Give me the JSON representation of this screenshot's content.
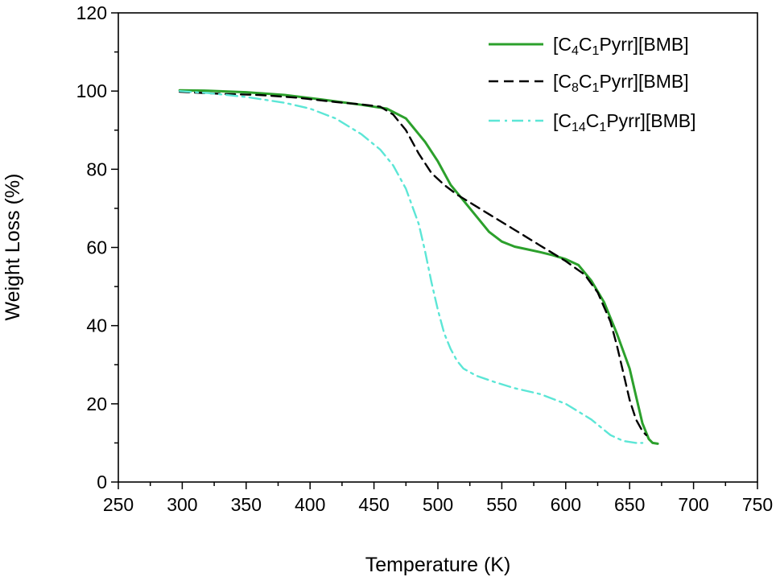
{
  "chart_data": {
    "type": "line",
    "title": "",
    "xlabel": "Temperature (K)",
    "ylabel": "Weight Loss (%)",
    "xlim": [
      250,
      750
    ],
    "ylim": [
      0,
      120
    ],
    "xticks": [
      250,
      300,
      350,
      400,
      450,
      500,
      550,
      600,
      650,
      700,
      750
    ],
    "yticks": [
      0,
      20,
      40,
      60,
      80,
      100,
      120
    ],
    "grid": false,
    "legend_position": "top-right",
    "series": [
      {
        "name": "[C4C1Pyrr][BMB]",
        "label_parts": [
          [
            "[C",
            ""
          ],
          [
            "4",
            "sub"
          ],
          [
            "C",
            ""
          ],
          [
            "1",
            "sub"
          ],
          [
            "Pyrr][BMB]",
            ""
          ]
        ],
        "color": "#2ca02c",
        "dash": "solid",
        "x": [
          298,
          320,
          350,
          380,
          410,
          440,
          460,
          475,
          490,
          500,
          510,
          520,
          530,
          540,
          550,
          560,
          570,
          580,
          590,
          600,
          610,
          620,
          630,
          640,
          650,
          655,
          660,
          665,
          668,
          672
        ],
        "y": [
          100.2,
          100.1,
          99.7,
          99.0,
          97.8,
          96.5,
          95.5,
          93.0,
          87.0,
          82.0,
          76.0,
          72.0,
          68.0,
          64.0,
          61.5,
          60.2,
          59.5,
          58.8,
          58.0,
          57.0,
          55.5,
          51.5,
          46.0,
          38.0,
          29.0,
          22.0,
          15.0,
          11.0,
          10.0,
          9.8
        ]
      },
      {
        "name": "[C8C1Pyrr][BMB]",
        "label_parts": [
          [
            "[C",
            ""
          ],
          [
            "8",
            "sub"
          ],
          [
            "C",
            ""
          ],
          [
            "1",
            "sub"
          ],
          [
            "Pyrr][BMB]",
            ""
          ]
        ],
        "color": "#000000",
        "dash": "dash",
        "x": [
          298,
          330,
          360,
          390,
          420,
          440,
          455,
          465,
          475,
          485,
          495,
          505,
          515,
          525,
          540,
          560,
          580,
          600,
          615,
          625,
          635,
          640,
          645,
          650,
          655,
          660,
          663
        ],
        "y": [
          99.8,
          99.3,
          99.0,
          98.3,
          97.2,
          96.6,
          96.0,
          94.0,
          90.0,
          84.0,
          79.0,
          76.0,
          73.5,
          71.5,
          68.5,
          64.5,
          60.5,
          56.5,
          53.0,
          48.5,
          41.0,
          35.0,
          28.0,
          21.0,
          16.0,
          13.0,
          12.0
        ]
      },
      {
        "name": "[C14C1Pyrr][BMB]",
        "label_parts": [
          [
            "[C",
            ""
          ],
          [
            "14",
            "sub"
          ],
          [
            "C",
            ""
          ],
          [
            "1",
            "sub"
          ],
          [
            "Pyrr][BMB]",
            ""
          ]
        ],
        "color": "#5ce6d6",
        "dash": "dashdot",
        "x": [
          298,
          320,
          350,
          380,
          400,
          420,
          440,
          455,
          465,
          475,
          485,
          490,
          495,
          500,
          505,
          510,
          515,
          520,
          530,
          545,
          560,
          580,
          600,
          620,
          635,
          645,
          655,
          660
        ],
        "y": [
          100.0,
          99.5,
          98.5,
          97.0,
          95.5,
          93.0,
          89.0,
          85.0,
          81.0,
          75.0,
          66.0,
          59.0,
          51.0,
          44.0,
          38.0,
          34.0,
          31.0,
          29.0,
          27.2,
          25.5,
          24.0,
          22.5,
          20.0,
          16.0,
          12.0,
          10.5,
          10.0,
          10.0
        ]
      }
    ]
  }
}
